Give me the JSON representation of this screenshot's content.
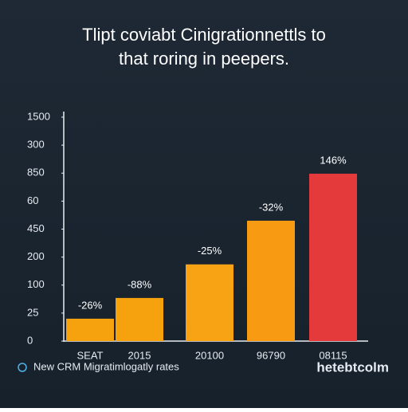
{
  "chart_data": {
    "type": "bar",
    "title": [
      "Tlipt coviabt Cinigrationnettls to",
      "that roring in peepers."
    ],
    "categories": [
      "SEAT",
      "2015",
      "20100",
      "96790",
      "08115"
    ],
    "values": [
      0.8,
      1.54,
      2.74,
      4.3,
      5.98
    ],
    "bar_labels": [
      "-26%",
      "-88%",
      "-25%",
      "-32%",
      "146%"
    ],
    "colors": [
      "#f5a20e",
      "#f5a20e",
      "#f7a313",
      "#f89a12",
      "#e43a3c"
    ],
    "ylim": [
      0,
      8
    ],
    "yticks": [
      0,
      {
        "value": 1,
        "label": "25"
      },
      {
        "value": 2,
        "label": "100"
      },
      {
        "value": 3,
        "label": "200"
      },
      {
        "value": 4,
        "label": "450"
      },
      {
        "value": 5,
        "label": "60"
      },
      {
        "value": 6,
        "label": "850"
      },
      {
        "value": 7,
        "label": "300"
      },
      {
        "value": 8,
        "label": "1500"
      }
    ],
    "footer": "New CRM Migratimlogatly rates",
    "brand": "hetebtcolm"
  }
}
